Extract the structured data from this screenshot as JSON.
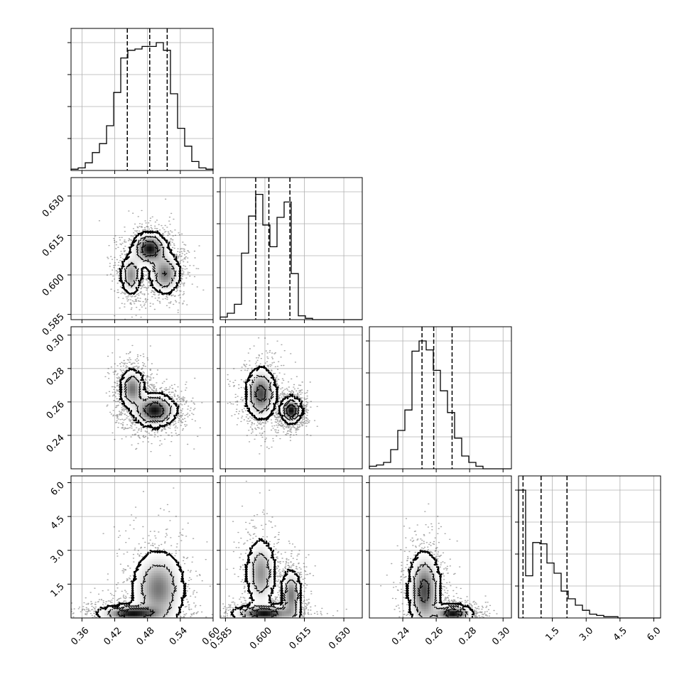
{
  "chart_data": {
    "type": "corner",
    "title": "",
    "parameters": [
      {
        "name": "",
        "range": [
          0.34,
          0.6
        ],
        "ticks": [
          "0.36",
          "0.42",
          "0.48",
          "0.54",
          "0.60"
        ],
        "quantiles": [
          0.443,
          0.484,
          0.516
        ],
        "hist_peak": 1.0
      },
      {
        "name": "",
        "range": [
          0.583,
          0.637
        ],
        "ticks": [
          "0.585",
          "0.600",
          "0.615",
          "0.630"
        ],
        "quantiles": [
          0.5965,
          0.6015,
          0.6095
        ],
        "hist_peak": 1.0
      },
      {
        "name": "",
        "range": [
          0.22,
          0.305
        ],
        "ticks": [
          "0.24",
          "0.26",
          "0.28",
          "0.30"
        ],
        "quantiles": [
          0.2515,
          0.2585,
          0.2695
        ],
        "hist_peak": 1.0
      },
      {
        "name": "",
        "range": [
          0.0,
          6.3
        ],
        "ticks": [
          "1.5",
          "3.0",
          "4.5",
          "6.0"
        ],
        "quantiles": [
          0.2,
          1.0,
          2.15
        ],
        "hist_peak": 1.0
      }
    ],
    "histograms": [
      {
        "param": 0,
        "bin_edges": [
          0.34,
          0.353,
          0.366,
          0.379,
          0.392,
          0.405,
          0.418,
          0.431,
          0.444,
          0.457,
          0.47,
          0.483,
          0.496,
          0.509,
          0.522,
          0.535,
          0.548,
          0.561,
          0.574,
          0.587,
          0.6
        ],
        "counts": [
          0.01,
          0.02,
          0.06,
          0.14,
          0.21,
          0.35,
          0.61,
          0.88,
          0.94,
          0.95,
          0.97,
          0.97,
          1.0,
          0.94,
          0.6,
          0.33,
          0.19,
          0.07,
          0.02,
          0.01
        ]
      },
      {
        "param": 1,
        "bin_edges": [
          0.583,
          0.5857,
          0.5884,
          0.5911,
          0.5938,
          0.5965,
          0.5992,
          0.6019,
          0.6046,
          0.6073,
          0.61,
          0.6127,
          0.6154,
          0.6181,
          0.6208,
          0.6235,
          0.6262,
          0.6289,
          0.6316,
          0.6343,
          0.637
        ],
        "counts": [
          0.02,
          0.05,
          0.12,
          0.52,
          0.81,
          0.98,
          0.74,
          0.57,
          0.8,
          0.92,
          0.36,
          0.03,
          0.01,
          0,
          0,
          0,
          0,
          0,
          0,
          0
        ]
      },
      {
        "param": 2,
        "bin_edges": [
          0.22,
          0.22425,
          0.2285,
          0.23275,
          0.237,
          0.24125,
          0.2455,
          0.24975,
          0.254,
          0.25825,
          0.2625,
          0.26675,
          0.271,
          0.27525,
          0.2795,
          0.28375,
          0.288,
          0.29225,
          0.2965,
          0.30075,
          0.305
        ],
        "counts": [
          0.02,
          0.03,
          0.05,
          0.15,
          0.3,
          0.46,
          0.92,
          1.0,
          0.93,
          0.77,
          0.61,
          0.44,
          0.24,
          0.1,
          0.05,
          0.02,
          0,
          0,
          0,
          0
        ]
      },
      {
        "param": 3,
        "bin_edges": [
          0.0,
          0.315,
          0.63,
          0.945,
          1.26,
          1.575,
          1.89,
          2.205,
          2.52,
          2.835,
          3.15,
          3.465,
          3.78,
          4.095,
          4.41,
          4.725,
          5.04,
          5.355,
          5.67,
          5.985,
          6.3
        ],
        "counts": [
          1.0,
          0.33,
          0.59,
          0.58,
          0.43,
          0.35,
          0.21,
          0.15,
          0.1,
          0.06,
          0.03,
          0.02,
          0.01,
          0.01,
          0,
          0,
          0,
          0,
          0,
          0
        ]
      }
    ],
    "joint": [
      {
        "x": 0,
        "y": 1,
        "modes": [
          {
            "cx": 0.484,
            "cy": 0.61,
            "sx": 0.016,
            "sy": 0.0032,
            "w": 1.0
          },
          {
            "cx": 0.45,
            "cy": 0.6,
            "sx": 0.01,
            "sy": 0.004,
            "w": 0.6
          },
          {
            "cx": 0.512,
            "cy": 0.6005,
            "sx": 0.015,
            "sy": 0.004,
            "w": 0.7
          }
        ]
      },
      {
        "x": 0,
        "y": 2,
        "modes": [
          {
            "cx": 0.452,
            "cy": 0.268,
            "sx": 0.012,
            "sy": 0.006,
            "w": 0.7
          },
          {
            "cx": 0.493,
            "cy": 0.255,
            "sx": 0.02,
            "sy": 0.005,
            "w": 1.0
          }
        ]
      },
      {
        "x": 0,
        "y": 3,
        "modes": [
          {
            "cx": 0.5,
            "cy": 1.3,
            "sx": 0.025,
            "sy": 0.9,
            "w": 0.7
          },
          {
            "cx": 0.45,
            "cy": 0.2,
            "sx": 0.03,
            "sy": 0.2,
            "w": 1.0
          }
        ]
      },
      {
        "x": 1,
        "y": 2,
        "modes": [
          {
            "cx": 0.5985,
            "cy": 0.265,
            "sx": 0.003,
            "sy": 0.008,
            "w": 0.8
          },
          {
            "cx": 0.61,
            "cy": 0.255,
            "sx": 0.002,
            "sy": 0.004,
            "w": 1.0
          }
        ]
      },
      {
        "x": 1,
        "y": 3,
        "modes": [
          {
            "cx": 0.5985,
            "cy": 2.0,
            "sx": 0.003,
            "sy": 0.8,
            "w": 0.6
          },
          {
            "cx": 0.61,
            "cy": 1.0,
            "sx": 0.002,
            "sy": 0.6,
            "w": 0.7
          },
          {
            "cx": 0.6,
            "cy": 0.2,
            "sx": 0.006,
            "sy": 0.2,
            "w": 1.0
          }
        ]
      },
      {
        "x": 2,
        "y": 3,
        "modes": [
          {
            "cx": 0.253,
            "cy": 1.2,
            "sx": 0.005,
            "sy": 0.9,
            "w": 0.8
          },
          {
            "cx": 0.27,
            "cy": 0.2,
            "sx": 0.006,
            "sy": 0.2,
            "w": 1.0
          }
        ]
      }
    ],
    "grid": true,
    "contour_levels": [
      0.12,
      0.35,
      0.7
    ],
    "colors": {
      "line": "#000000",
      "grid": "#b0b0b0",
      "density": "#000000"
    }
  }
}
